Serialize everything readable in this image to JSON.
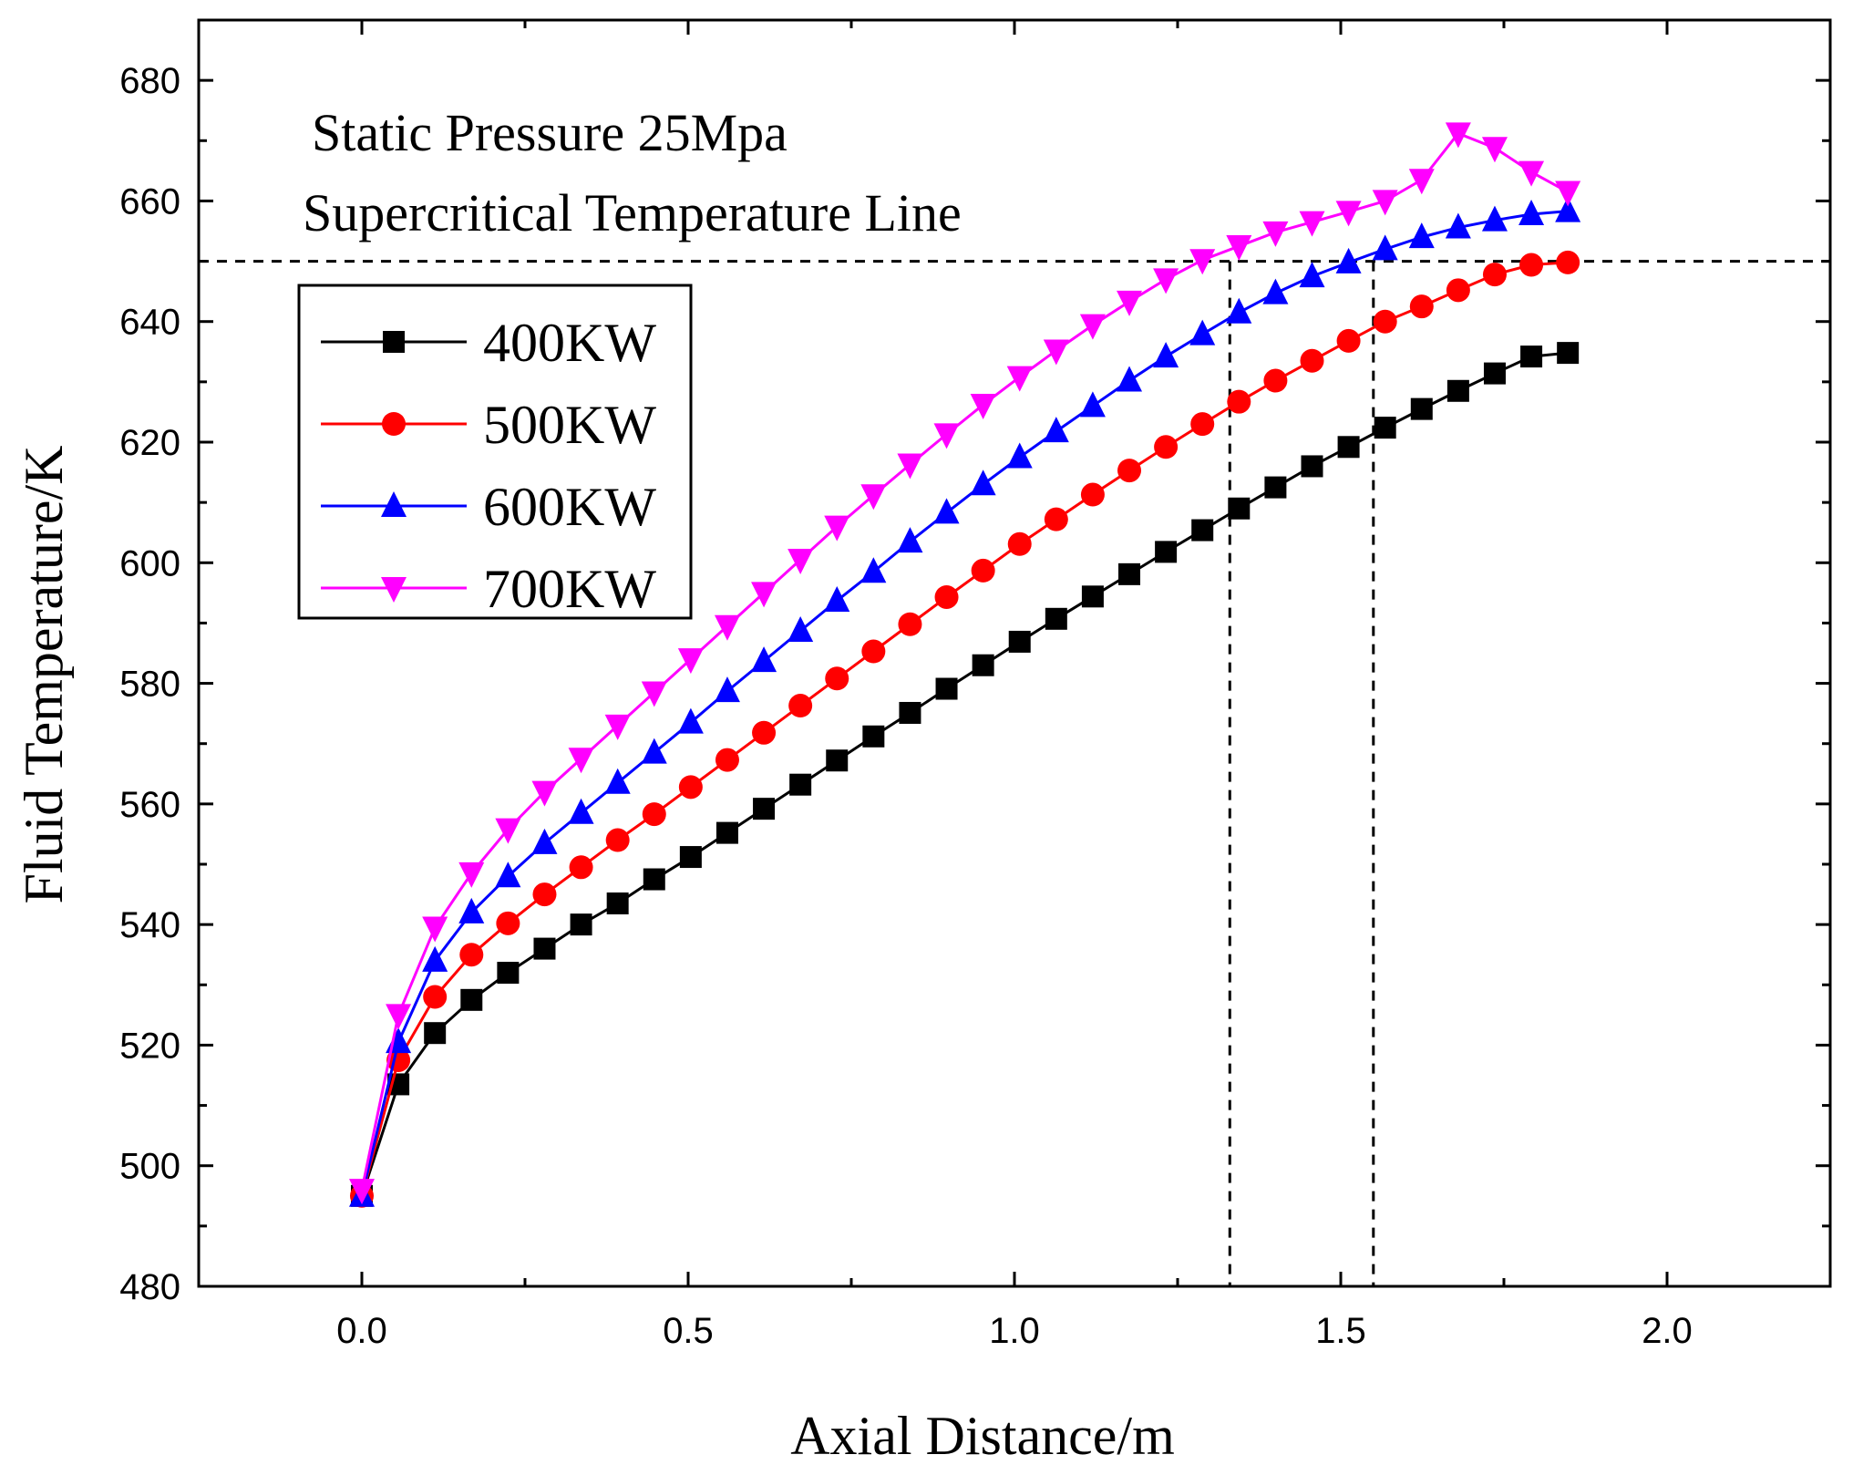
{
  "chart_data": {
    "type": "line",
    "title": "",
    "xlabel": "Axial Distance/m",
    "ylabel": "Fluid Temperature/K",
    "xlim": [
      -0.25,
      2.25
    ],
    "ylim": [
      480,
      690
    ],
    "xticks": [
      0.0,
      0.5,
      1.0,
      1.5,
      2.0
    ],
    "xtick_labels": [
      "0.0",
      "0.5",
      "1.0",
      "1.5",
      "2.0"
    ],
    "yticks": [
      480,
      500,
      520,
      540,
      560,
      580,
      600,
      620,
      640,
      660,
      680
    ],
    "ytick_labels": [
      "480",
      "500",
      "520",
      "540",
      "560",
      "580",
      "600",
      "620",
      "640",
      "660",
      "680"
    ],
    "grid": false,
    "legend_position": "upper-left",
    "annotations": [
      "Static Pressure 25Mpa",
      "Supercritical Temperature Line"
    ],
    "reference_lines": {
      "horizontal_y": 650,
      "vertical_x": [
        1.33,
        1.55
      ]
    },
    "x": [
      0.0,
      0.056,
      0.112,
      0.168,
      0.224,
      0.28,
      0.336,
      0.392,
      0.448,
      0.504,
      0.56,
      0.616,
      0.672,
      0.728,
      0.784,
      0.84,
      0.896,
      0.952,
      1.008,
      1.064,
      1.12,
      1.176,
      1.232,
      1.288,
      1.344,
      1.4,
      1.456,
      1.512,
      1.568,
      1.624,
      1.68,
      1.736,
      1.792,
      1.848
    ],
    "series": [
      {
        "name": "400KW",
        "color": "#000000",
        "marker": "square",
        "values": [
          495,
          513.5,
          522,
          527.5,
          532,
          536,
          540,
          543.5,
          547.5,
          551.2,
          555.2,
          559.2,
          563.2,
          567.2,
          571.2,
          575.1,
          579.1,
          583.0,
          586.9,
          590.7,
          594.4,
          598.1,
          601.8,
          605.4,
          609.0,
          612.5,
          616.0,
          619.2,
          622.4,
          625.5,
          628.5,
          631.4,
          634.2,
          634.8
        ]
      },
      {
        "name": "500KW",
        "color": "#ff0000",
        "marker": "circle",
        "values": [
          495,
          517.5,
          528,
          535,
          540.2,
          545,
          549.5,
          554,
          558.3,
          562.8,
          567.3,
          571.8,
          576.3,
          580.8,
          585.3,
          589.8,
          594.3,
          598.7,
          603.1,
          607.2,
          611.3,
          615.3,
          619.2,
          623.0,
          626.7,
          630.2,
          633.5,
          636.8,
          640.0,
          642.5,
          645.2,
          647.8,
          649.4,
          649.8
        ]
      },
      {
        "name": "600KW",
        "color": "#0000ff",
        "marker": "triangle-up",
        "values": [
          495,
          520.5,
          534,
          542,
          548,
          553.5,
          558.5,
          563.5,
          568.5,
          573.5,
          578.7,
          583.7,
          588.7,
          593.7,
          598.5,
          603.5,
          608.3,
          613.0,
          617.5,
          621.8,
          626.0,
          630.2,
          634.2,
          637.9,
          641.5,
          644.7,
          647.5,
          649.8,
          652.0,
          654.0,
          655.6,
          656.8,
          657.8,
          658.3
        ]
      },
      {
        "name": "700KW",
        "color": "#ff00ff",
        "marker": "triangle-down",
        "values": [
          496,
          525,
          539.5,
          548.5,
          555.8,
          562,
          567.5,
          573,
          578.5,
          584,
          589.5,
          595,
          600.5,
          606,
          611.2,
          616.3,
          621.3,
          626.2,
          630.8,
          635.2,
          639.4,
          643.3,
          647.0,
          650.2,
          652.5,
          654.8,
          656.5,
          658.2,
          660.0,
          663.5,
          671.2,
          668.8,
          664.8,
          661.5
        ]
      }
    ]
  }
}
